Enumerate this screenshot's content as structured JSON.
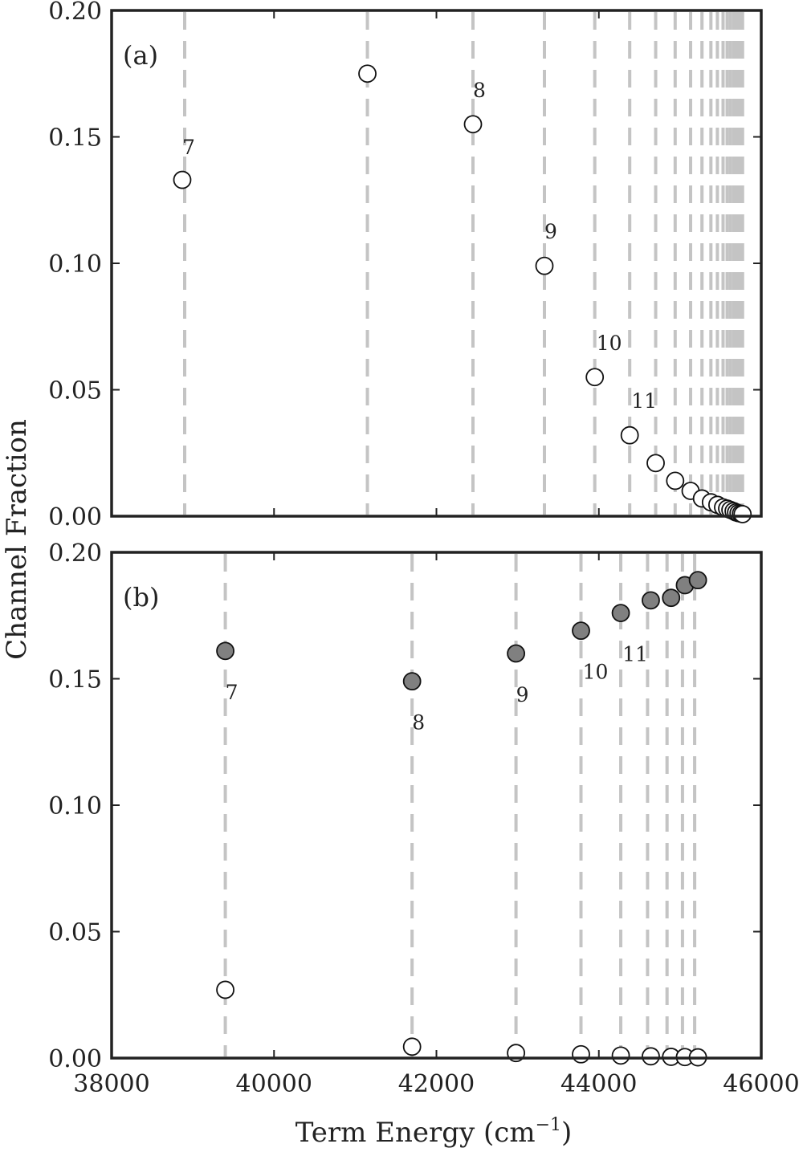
{
  "figure": {
    "ylabel": "Channel Fraction",
    "xlabel": "Term Energy (cm",
    "xlabel_exponent": "−1",
    "xlabel_close": ")"
  },
  "chart_data": [
    {
      "type": "scatter",
      "panel_label": "(a)",
      "xlim": [
        38000,
        46000
      ],
      "ylim": [
        0.0,
        0.2
      ],
      "x_ticks": [
        38000,
        40000,
        42000,
        44000,
        46000
      ],
      "y_ticks": [
        "0.00",
        "0.05",
        "0.10",
        "0.15",
        "0.20"
      ],
      "grid": false,
      "vlines": [
        38900,
        41150,
        42450,
        43330,
        43950,
        44380,
        44700,
        44940,
        45130,
        45270,
        45380,
        45460,
        45530,
        45580,
        45620,
        45660,
        45690,
        45720,
        45750,
        45770
      ],
      "series": [
        {
          "marker": "open-circle",
          "x": [
            38870,
            41150,
            42450,
            43330,
            43950,
            44380,
            44700,
            44940,
            45130,
            45270,
            45380,
            45460,
            45530,
            45580,
            45620,
            45660,
            45690,
            45720,
            45750,
            45770
          ],
          "y": [
            0.133,
            0.175,
            0.155,
            0.099,
            0.055,
            0.032,
            0.021,
            0.014,
            0.01,
            0.007,
            0.0055,
            0.0045,
            0.0035,
            0.003,
            0.0025,
            0.002,
            0.0015,
            0.0012,
            0.001,
            0.0008
          ]
        }
      ],
      "point_labels": [
        "7",
        "",
        "8",
        "9",
        "10",
        "11"
      ]
    },
    {
      "type": "scatter",
      "panel_label": "(b)",
      "xlim": [
        38000,
        46000
      ],
      "ylim": [
        0.0,
        0.2
      ],
      "x_ticks": [
        "38000",
        "40000",
        "42000",
        "44000",
        "46000"
      ],
      "y_ticks": [
        "0.00",
        "0.05",
        "0.10",
        "0.15",
        "0.20"
      ],
      "grid": false,
      "vlines": [
        39400,
        41700,
        42980,
        43780,
        44270,
        44600,
        44840,
        45030,
        45180
      ],
      "series": [
        {
          "marker": "filled-circle",
          "color": "#808080",
          "x": [
            39400,
            41700,
            42980,
            43780,
            44270,
            44640,
            44890,
            45060,
            45220
          ],
          "y": [
            0.161,
            0.149,
            0.16,
            0.169,
            0.176,
            0.181,
            0.182,
            0.187,
            0.189
          ]
        },
        {
          "marker": "open-circle",
          "x": [
            39400,
            41700,
            42980,
            43780,
            44270,
            44640,
            44890,
            45060,
            45220
          ],
          "y": [
            0.027,
            0.0045,
            0.002,
            0.0015,
            0.001,
            0.0007,
            0.0005,
            0.0004,
            0.0003
          ]
        }
      ],
      "point_labels": [
        "7",
        "8",
        "9",
        "10",
        "11"
      ]
    }
  ]
}
